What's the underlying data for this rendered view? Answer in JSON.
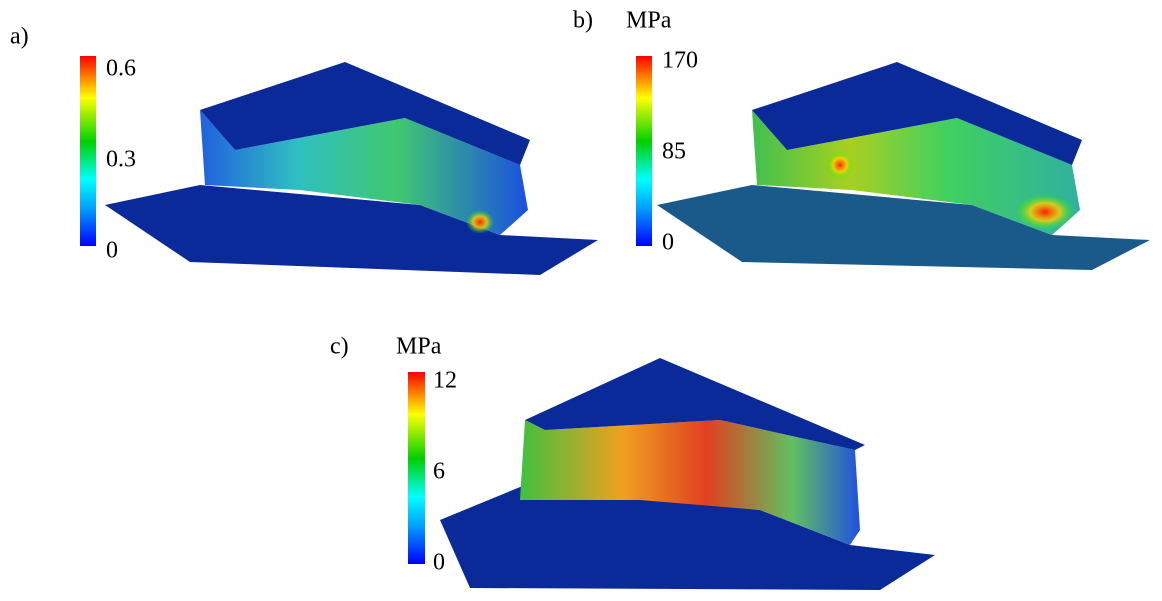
{
  "panels": [
    {
      "label": "a)",
      "colorbar": {
        "ticks": [
          0,
          0.3,
          0.6
        ]
      }
    },
    {
      "label": "b)",
      "unit": "MPa",
      "colorbar": {
        "ticks": [
          0,
          85,
          170
        ]
      }
    },
    {
      "label": "c)",
      "unit": "MPa",
      "colorbar": {
        "ticks": [
          0,
          6,
          12
        ]
      }
    }
  ]
}
